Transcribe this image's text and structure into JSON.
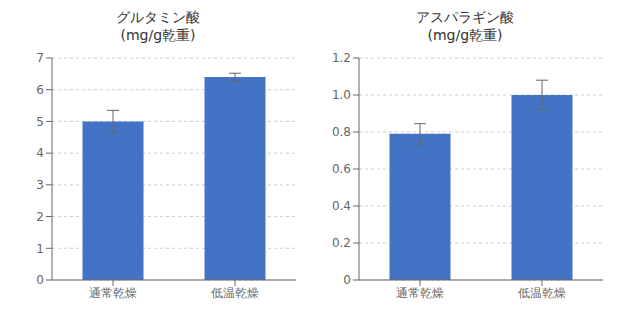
{
  "chart_data": [
    {
      "type": "bar",
      "title": "グルタミン酸\n(mg/g乾重)",
      "categories": [
        "通常乾燥",
        "低温乾燥"
      ],
      "values": [
        5.0,
        6.4
      ],
      "errors": [
        0.35,
        0.12
      ],
      "color": "#4472C4",
      "ylim": [
        0,
        7
      ],
      "yticks": [
        0,
        1,
        2,
        3,
        4,
        5,
        6,
        7
      ],
      "grid": true
    },
    {
      "type": "bar",
      "title": "アスパラギン酸\n(mg/g乾重)",
      "categories": [
        "通常乾燥",
        "低温乾燥"
      ],
      "values": [
        0.79,
        1.0
      ],
      "errors": [
        0.055,
        0.08
      ],
      "color": "#4472C4",
      "ylim": [
        0,
        1.2
      ],
      "yticks": [
        0,
        0.2,
        0.4,
        0.6,
        0.8,
        {
          "value": 1.0,
          "label": "1.0"
        },
        1.2
      ],
      "grid": true
    }
  ]
}
